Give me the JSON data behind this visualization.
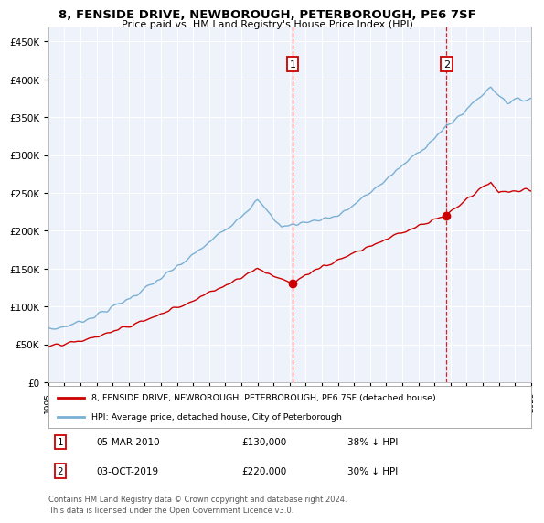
{
  "title": "8, FENSIDE DRIVE, NEWBOROUGH, PETERBOROUGH, PE6 7SF",
  "subtitle": "Price paid vs. HM Land Registry's House Price Index (HPI)",
  "background_color": "#ffffff",
  "plot_bg_color": "#eef2fa",
  "grid_color": "#ffffff",
  "ylim": [
    0,
    470000
  ],
  "yticks": [
    0,
    50000,
    100000,
    150000,
    200000,
    250000,
    300000,
    350000,
    400000,
    450000
  ],
  "ytick_labels": [
    "£0",
    "£50K",
    "£100K",
    "£150K",
    "£200K",
    "£250K",
    "£300K",
    "£350K",
    "£400K",
    "£450K"
  ],
  "sale1_year": 2010.17,
  "sale1_price": 130000,
  "sale2_year": 2019.75,
  "sale2_price": 220000,
  "hpi_color": "#7ab0d4",
  "price_color": "#cc0000",
  "dashed_line_color": "#cc0000",
  "legend_entry1": "8, FENSIDE DRIVE, NEWBOROUGH, PETERBOROUGH, PE6 7SF (detached house)",
  "legend_entry2": "HPI: Average price, detached house, City of Peterborough",
  "table_row1": [
    "1",
    "05-MAR-2010",
    "£130,000",
    "38% ↓ HPI"
  ],
  "table_row2": [
    "2",
    "03-OCT-2019",
    "£220,000",
    "30% ↓ HPI"
  ],
  "footer": "Contains HM Land Registry data © Crown copyright and database right 2024.\nThis data is licensed under the Open Government Licence v3.0.",
  "x_start_year": 1995,
  "x_end_year": 2025
}
